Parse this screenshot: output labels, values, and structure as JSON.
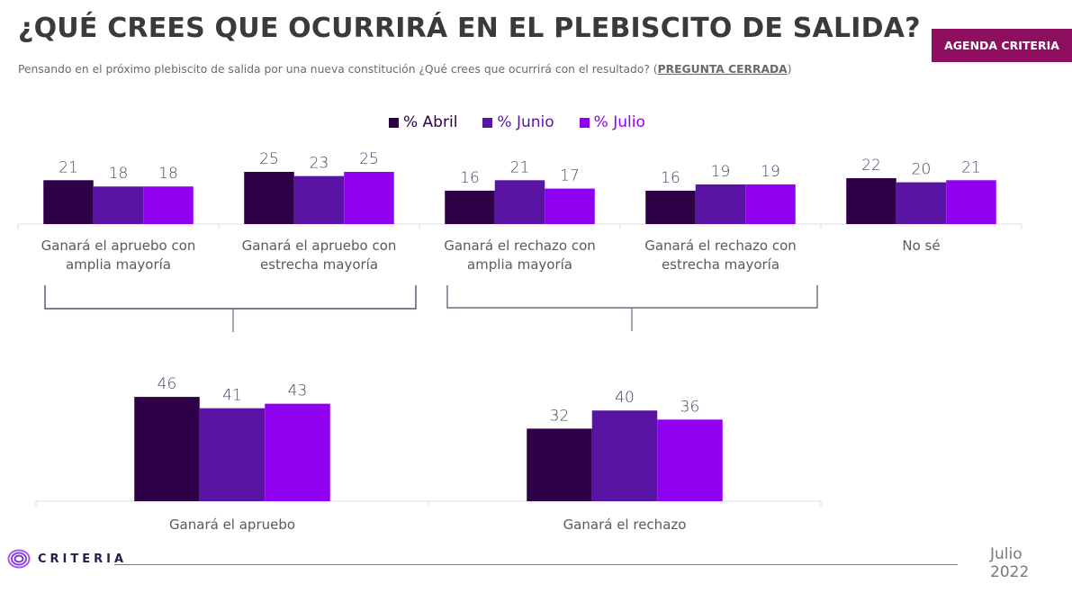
{
  "header": {
    "title": "¿QUÉ CREES QUE OCURRIRÁ EN EL PLEBISCITO DE SALIDA?",
    "subtitle_prefix": "Pensando en el próximo plebiscito de salida por una nueva constitución ¿Qué crees que ocurrirá con el resultado? (",
    "subtitle_emphasis": "PREGUNTA CERRADA",
    "subtitle_suffix": ")",
    "badge": "AGENDA CRITERIA"
  },
  "colors": {
    "abril": "#2d0048",
    "junio": "#5a14a3",
    "julio": "#9000f0",
    "badge": "#8e0e5f",
    "label": "#4a4060"
  },
  "legend": [
    {
      "label": "% Abril",
      "color": "#2d0048"
    },
    {
      "label": "% Junio",
      "color": "#5a14a3"
    },
    {
      "label": "% Julio",
      "color": "#9000f0"
    }
  ],
  "chart_data": [
    {
      "type": "bar",
      "title": "",
      "xlabel": "",
      "ylabel": "%",
      "grid": false,
      "legend_position": "top-center",
      "categories": [
        [
          "Ganará el apruebo con",
          "amplia mayoría"
        ],
        [
          "Ganará el apruebo con",
          "estrecha mayoría"
        ],
        [
          "Ganará el rechazo con",
          "amplia mayoría"
        ],
        [
          "Ganará el rechazo con",
          "estrecha mayoría"
        ],
        [
          "No sé"
        ]
      ],
      "series": [
        {
          "name": "% Abril",
          "values": [
            21,
            25,
            16,
            16,
            22
          ]
        },
        {
          "name": "% Junio",
          "values": [
            18,
            23,
            21,
            19,
            20
          ]
        },
        {
          "name": "% Julio",
          "values": [
            18,
            25,
            17,
            19,
            21
          ]
        }
      ],
      "ylim": [
        0,
        30
      ]
    },
    {
      "type": "bar",
      "title": "",
      "xlabel": "",
      "ylabel": "%",
      "grid": false,
      "categories": [
        [
          "Ganará el apruebo"
        ],
        [
          "Ganará el rechazo"
        ]
      ],
      "series": [
        {
          "name": "% Abril",
          "values": [
            46,
            32
          ]
        },
        {
          "name": "% Junio",
          "values": [
            41,
            40
          ]
        },
        {
          "name": "% Julio",
          "values": [
            43,
            36
          ]
        }
      ],
      "ylim": [
        0,
        55
      ]
    }
  ],
  "footer": {
    "logo_text": "CRITERIA",
    "date_month": "Julio",
    "date_year": "2022"
  }
}
